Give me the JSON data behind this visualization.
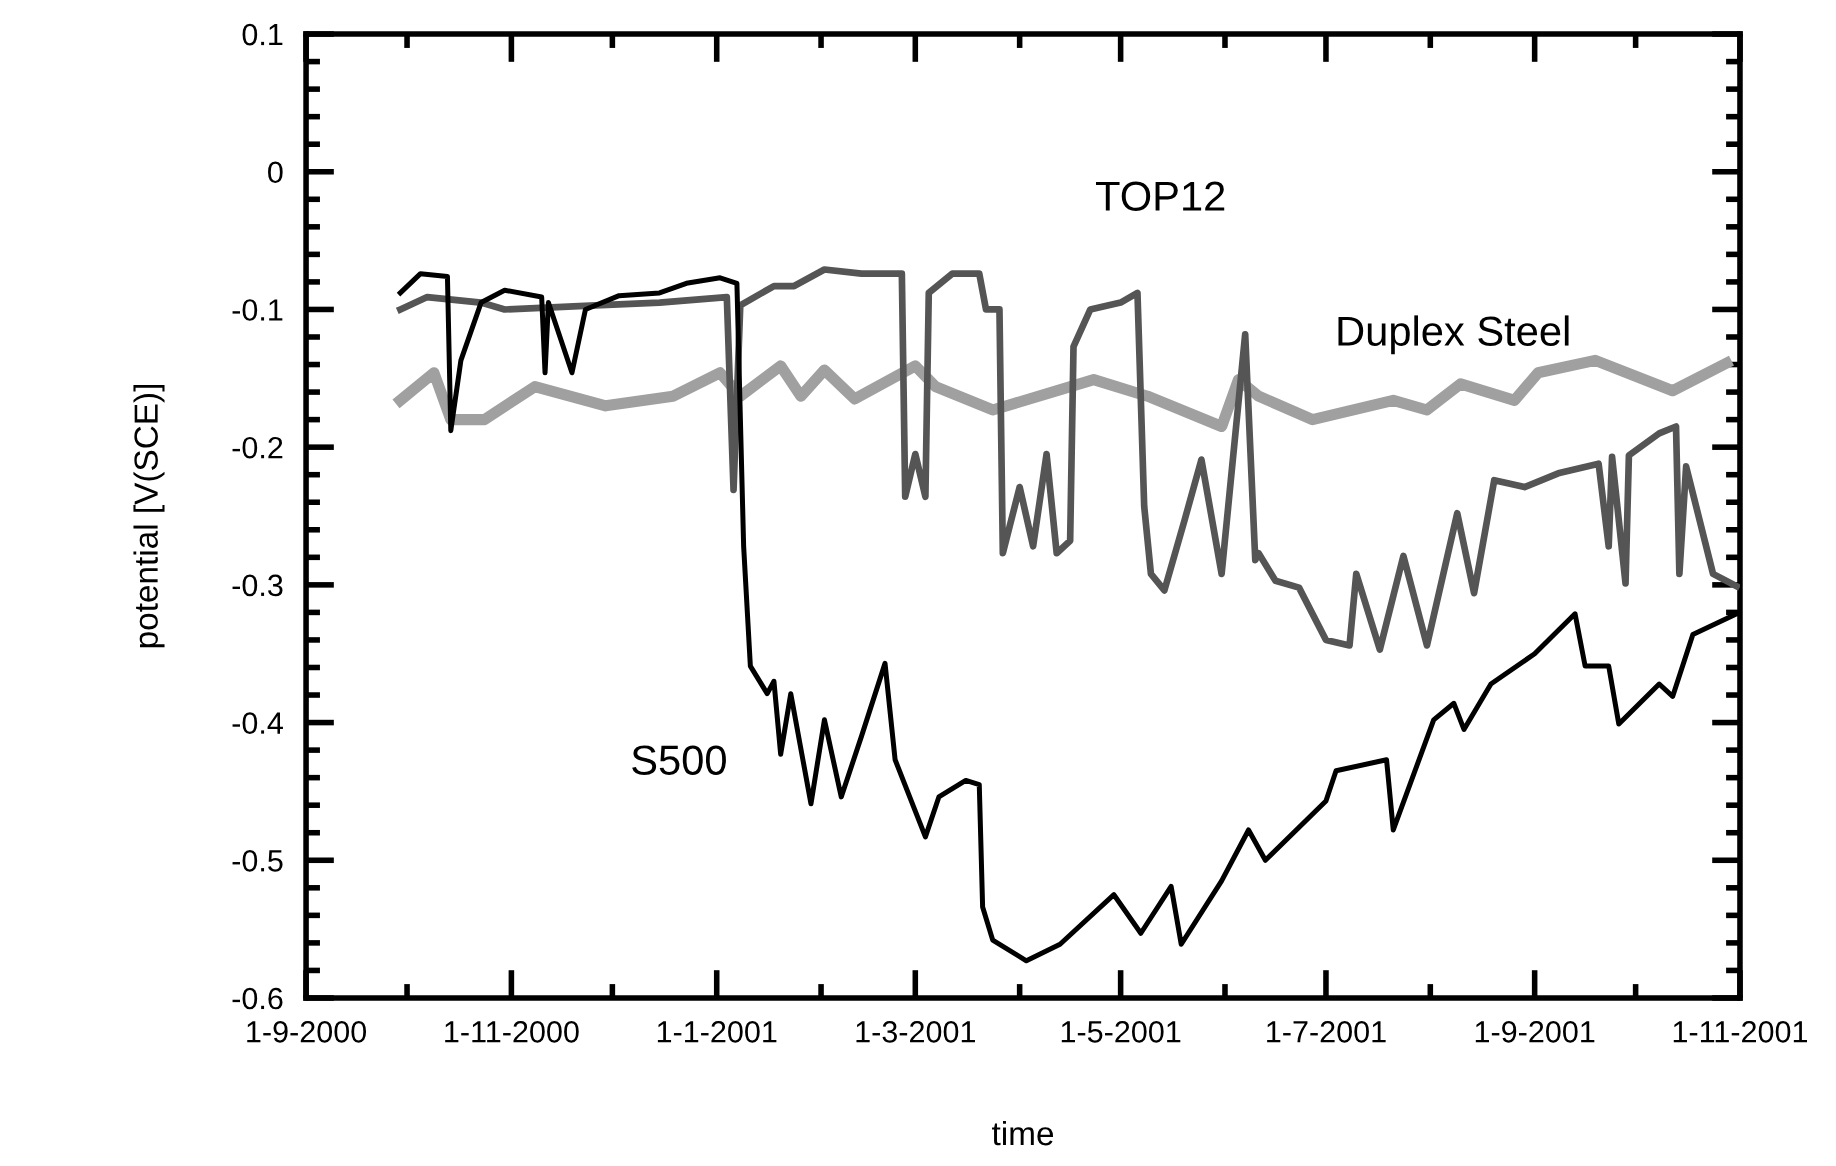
{
  "chart_data": {
    "type": "line",
    "xlabel": "time",
    "ylabel": "potential [V(SCE)]",
    "xlim": [
      "2000-09-01",
      "2001-11-01"
    ],
    "xticks": [
      {
        "value": "2000-09-01",
        "label": "1-9-2000"
      },
      {
        "value": "2000-11-01",
        "label": "1-11-2000"
      },
      {
        "value": "2001-01-01",
        "label": "1-1-2001"
      },
      {
        "value": "2001-03-01",
        "label": "1-3-2001"
      },
      {
        "value": "2001-05-01",
        "label": "1-5-2001"
      },
      {
        "value": "2001-07-01",
        "label": "1-7-2001"
      },
      {
        "value": "2001-09-01",
        "label": "1-9-2001"
      },
      {
        "value": "2001-11-01",
        "label": "1-11-2001"
      }
    ],
    "ylim": [
      -0.6,
      0.1
    ],
    "yticks": [
      -0.6,
      -0.5,
      -0.4,
      -0.3,
      -0.2,
      -0.1,
      0,
      0.1
    ],
    "grid": false,
    "marker": "none",
    "line_style": "solid",
    "series": [
      {
        "name": "S500",
        "color": "#000000",
        "x": [
          "2000-09-29",
          "2000-10-05",
          "2000-10-13",
          "2000-10-14",
          "2000-10-17",
          "2000-10-23",
          "2000-10-30",
          "2000-11-10",
          "2000-11-11",
          "2000-11-12",
          "2000-11-19",
          "2000-11-23",
          "2000-12-03",
          "2000-12-15",
          "2000-12-23",
          "2001-01-02",
          "2001-01-07",
          "2001-01-09",
          "2001-01-11",
          "2001-01-16",
          "2001-01-18",
          "2001-01-20",
          "2001-01-23",
          "2001-01-29",
          "2001-02-02",
          "2001-02-07",
          "2001-02-13",
          "2001-02-20",
          "2001-02-23",
          "2001-03-04",
          "2001-03-08",
          "2001-03-16",
          "2001-03-20",
          "2001-03-21",
          "2001-03-24",
          "2001-04-03",
          "2001-04-13",
          "2001-04-29",
          "2001-05-07",
          "2001-05-16",
          "2001-05-19",
          "2001-05-31",
          "2001-06-08",
          "2001-06-13",
          "2001-07-01",
          "2001-07-04",
          "2001-07-19",
          "2001-07-21",
          "2001-08-02",
          "2001-08-08",
          "2001-08-11",
          "2001-08-19",
          "2001-09-01",
          "2001-09-13",
          "2001-09-16",
          "2001-09-23",
          "2001-09-26",
          "2001-10-08",
          "2001-10-12",
          "2001-10-18",
          "2001-10-31"
        ],
        "values": [
          -0.088,
          -0.074,
          -0.076,
          -0.188,
          -0.137,
          -0.095,
          -0.086,
          -0.091,
          -0.146,
          -0.095,
          -0.146,
          -0.1,
          -0.09,
          -0.088,
          -0.081,
          -0.077,
          -0.081,
          -0.272,
          -0.359,
          -0.379,
          -0.37,
          -0.423,
          -0.379,
          -0.459,
          -0.398,
          -0.454,
          -0.41,
          -0.357,
          -0.427,
          -0.483,
          -0.454,
          -0.442,
          -0.445,
          -0.534,
          -0.558,
          -0.573,
          -0.561,
          -0.525,
          -0.553,
          -0.519,
          -0.561,
          -0.515,
          -0.478,
          -0.5,
          -0.457,
          -0.435,
          -0.427,
          -0.478,
          -0.398,
          -0.386,
          -0.405,
          -0.372,
          -0.35,
          -0.321,
          -0.359,
          -0.359,
          -0.401,
          -0.372,
          -0.381,
          -0.336,
          -0.321
        ]
      },
      {
        "name": "TOP12",
        "color": "#555555",
        "x": [
          "2000-09-29",
          "2000-10-07",
          "2000-10-23",
          "2000-10-30",
          "2000-11-26",
          "2000-12-15",
          "2001-01-04",
          "2001-01-06",
          "2001-01-08",
          "2001-01-18",
          "2001-01-24",
          "2001-02-02",
          "2001-02-13",
          "2001-02-25",
          "2001-02-26",
          "2001-03-01",
          "2001-03-04",
          "2001-03-05",
          "2001-03-12",
          "2001-03-20",
          "2001-03-22",
          "2001-03-26",
          "2001-03-27",
          "2001-04-01",
          "2001-04-05",
          "2001-04-09",
          "2001-04-12",
          "2001-04-16",
          "2001-04-17",
          "2001-04-22",
          "2001-05-01",
          "2001-05-06",
          "2001-05-08",
          "2001-05-10",
          "2001-05-14",
          "2001-05-20",
          "2001-05-25",
          "2001-05-31",
          "2001-06-07",
          "2001-06-10",
          "2001-06-11",
          "2001-06-16",
          "2001-06-23",
          "2001-07-01",
          "2001-07-08",
          "2001-07-10",
          "2001-07-17",
          "2001-07-24",
          "2001-07-31",
          "2001-08-09",
          "2001-08-14",
          "2001-08-20",
          "2001-08-29",
          "2001-09-08",
          "2001-09-20",
          "2001-09-23",
          "2001-09-24",
          "2001-09-28",
          "2001-09-29",
          "2001-10-08",
          "2001-10-13",
          "2001-10-14",
          "2001-10-16",
          "2001-10-24",
          "2001-10-31"
        ],
        "values": [
          -0.1,
          -0.091,
          -0.095,
          -0.1,
          -0.097,
          -0.095,
          -0.091,
          -0.231,
          -0.097,
          -0.083,
          -0.083,
          -0.071,
          -0.074,
          -0.074,
          -0.236,
          -0.205,
          -0.236,
          -0.088,
          -0.074,
          -0.074,
          -0.1,
          -0.1,
          -0.277,
          -0.229,
          -0.272,
          -0.205,
          -0.277,
          -0.268,
          -0.127,
          -0.1,
          -0.095,
          -0.088,
          -0.243,
          -0.292,
          -0.304,
          -0.253,
          -0.209,
          -0.292,
          -0.118,
          -0.282,
          -0.277,
          -0.297,
          -0.302,
          -0.34,
          -0.344,
          -0.292,
          -0.347,
          -0.279,
          -0.344,
          -0.248,
          -0.306,
          -0.224,
          -0.229,
          -0.219,
          -0.212,
          -0.272,
          -0.207,
          -0.299,
          -0.206,
          -0.19,
          -0.185,
          -0.292,
          -0.214,
          -0.292,
          -0.301
        ]
      },
      {
        "name": "Duplex Steel",
        "color": "#a0a0a0",
        "x": [
          "2000-09-29",
          "2000-10-09",
          "2000-10-14",
          "2000-10-24",
          "2000-11-08",
          "2000-11-29",
          "2000-12-19",
          "2001-01-02",
          "2001-01-08",
          "2001-01-20",
          "2001-01-26",
          "2001-02-02",
          "2001-02-11",
          "2001-03-01",
          "2001-03-07",
          "2001-03-24",
          "2001-04-23",
          "2001-05-09",
          "2001-05-31",
          "2001-06-05",
          "2001-06-11",
          "2001-06-27",
          "2001-07-21",
          "2001-07-31",
          "2001-08-10",
          "2001-08-26",
          "2001-09-02",
          "2001-09-19",
          "2001-10-12",
          "2001-10-28"
        ],
        "values": [
          -0.166,
          -0.146,
          -0.18,
          -0.18,
          -0.156,
          -0.17,
          -0.163,
          -0.146,
          -0.163,
          -0.141,
          -0.163,
          -0.144,
          -0.165,
          -0.141,
          -0.156,
          -0.173,
          -0.151,
          -0.163,
          -0.185,
          -0.151,
          -0.163,
          -0.18,
          -0.166,
          -0.173,
          -0.154,
          -0.166,
          -0.146,
          -0.137,
          -0.159,
          -0.139
        ]
      }
    ]
  }
}
